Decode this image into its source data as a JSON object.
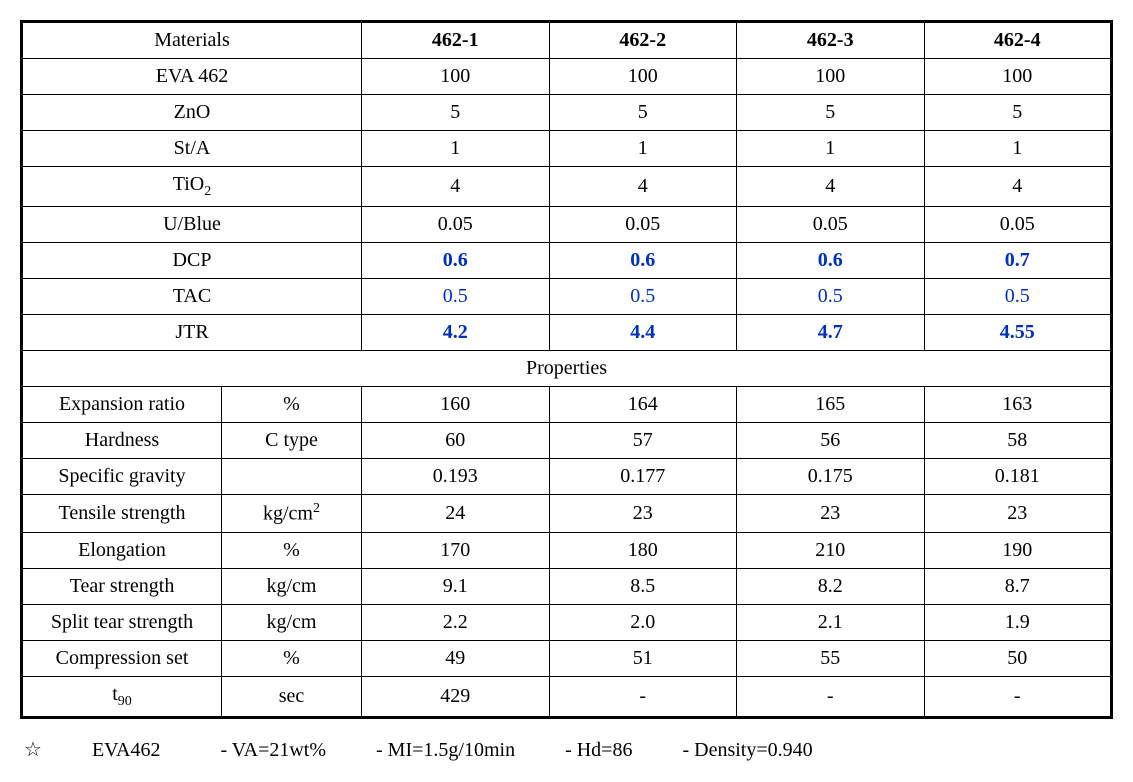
{
  "header": {
    "materials_label": "Materials",
    "cols": [
      "462-1",
      "462-2",
      "462-3",
      "462-4"
    ]
  },
  "materials": [
    {
      "name": "EVA 462",
      "v": [
        "100",
        "100",
        "100",
        "100"
      ],
      "style": ""
    },
    {
      "name": "ZnO",
      "v": [
        "5",
        "5",
        "5",
        "5"
      ],
      "style": ""
    },
    {
      "name": "St/A",
      "v": [
        "1",
        "1",
        "1",
        "1"
      ],
      "style": ""
    },
    {
      "name": "TiO",
      "sub": "2",
      "v": [
        "4",
        "4",
        "4",
        "4"
      ],
      "style": ""
    },
    {
      "name": "U/Blue",
      "v": [
        "0.05",
        "0.05",
        "0.05",
        "0.05"
      ],
      "style": ""
    },
    {
      "name": "DCP",
      "v": [
        "0.6",
        "0.6",
        "0.6",
        "0.7"
      ],
      "style": "blue bold"
    },
    {
      "name": "TAC",
      "v": [
        "0.5",
        "0.5",
        "0.5",
        "0.5"
      ],
      "style": "blue"
    },
    {
      "name": "JTR",
      "v": [
        "4.2",
        "4.4",
        "4.7",
        "4.55"
      ],
      "style": "blue bold"
    }
  ],
  "properties_label": "Properties",
  "properties": [
    {
      "name": "Expansion ratio",
      "unit": "%",
      "v": [
        "160",
        "164",
        "165",
        "163"
      ]
    },
    {
      "name": "Hardness",
      "unit": "C type",
      "v": [
        "60",
        "57",
        "56",
        "58"
      ]
    },
    {
      "name": "Specific gravity",
      "unit": "",
      "v": [
        "0.193",
        "0.177",
        "0.175",
        "0.181"
      ]
    },
    {
      "name": "Tensile strength",
      "unit": "kg/cm",
      "unit_sup": "2",
      "v": [
        "24",
        "23",
        "23",
        "23"
      ]
    },
    {
      "name": "Elongation",
      "unit": "%",
      "v": [
        "170",
        "180",
        "210",
        "190"
      ]
    },
    {
      "name": "Tear strength",
      "unit": "kg/cm",
      "v": [
        "9.1",
        "8.5",
        "8.2",
        "8.7"
      ]
    },
    {
      "name": "Split tear strength",
      "unit": "kg/cm",
      "v": [
        "2.2",
        "2.0",
        "2.1",
        "1.9"
      ]
    },
    {
      "name": "Compression set",
      "unit": "%",
      "v": [
        "49",
        "51",
        "55",
        "50"
      ]
    },
    {
      "name": "t",
      "name_sub": "90",
      "unit": "sec",
      "v": [
        "429",
        "-",
        "-",
        "-"
      ]
    }
  ],
  "footer": {
    "star": "☆",
    "lead": "EVA462",
    "items": [
      "- VA=21wt%",
      "- MI=1.5g/10min",
      "- Hd=86",
      "- Density=0.940"
    ]
  },
  "style": {
    "blue_color": "#0030c0",
    "border_color": "#000000",
    "font_family": "Georgia, 'Times New Roman', serif",
    "base_fontsize": 20
  }
}
